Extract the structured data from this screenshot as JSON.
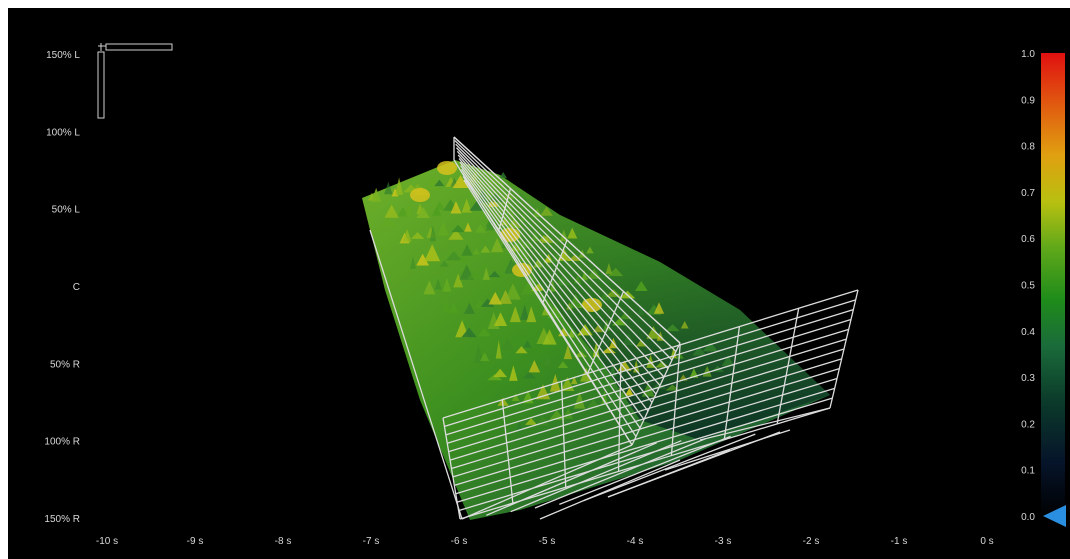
{
  "chart_data": {
    "type": "surface-3d",
    "y_axis": {
      "ticks": [
        "150% L",
        "100% L",
        "50% L",
        "C",
        "50% R",
        "100% R",
        "150% R"
      ]
    },
    "x_axis": {
      "ticks": [
        "-10 s",
        "-9 s",
        "-8 s",
        "-7 s",
        "-6 s",
        "-5 s",
        "-4 s",
        "-3 s",
        "-2 s",
        "-1 s",
        "0 s"
      ],
      "range": [
        -10,
        0
      ]
    },
    "colorbar": {
      "ticks": [
        "1.0",
        "0.9",
        "0.8",
        "0.7",
        "0.6",
        "0.5",
        "0.4",
        "0.3",
        "0.2",
        "0.1",
        "0.0"
      ],
      "range": [
        0,
        1
      ],
      "colors": [
        "#000000",
        "#0b3a2a",
        "#1a6b3a",
        "#1f8c1a",
        "#5fa81a",
        "#b8c010",
        "#e0a010",
        "#e06010",
        "#e01010"
      ]
    },
    "surface": {
      "colors": {
        "low": "#0f4a3a",
        "mid": "#3c8f1f",
        "high": "#c8c81c"
      },
      "grid_color": "#d8d8d8"
    }
  }
}
